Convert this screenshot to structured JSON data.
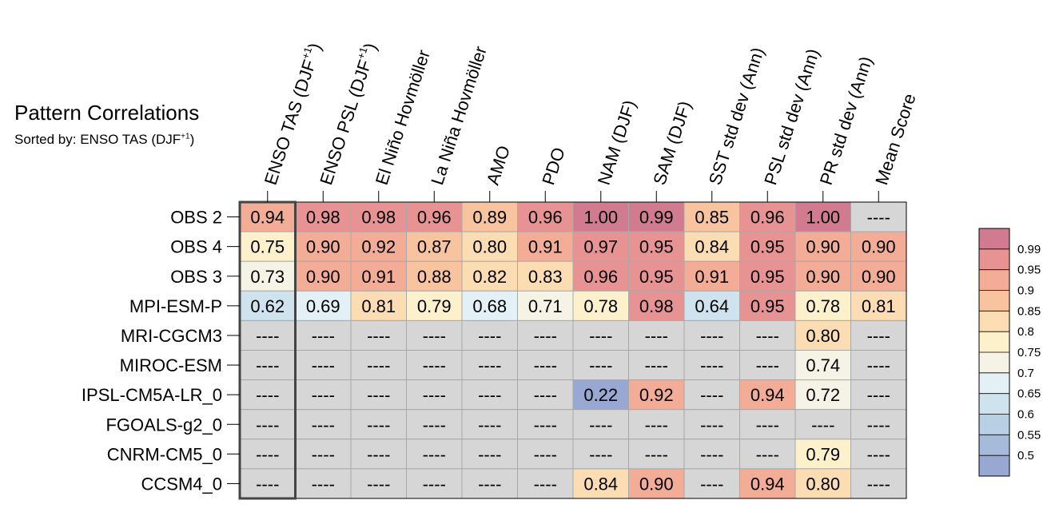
{
  "chart_data": {
    "type": "heatmap",
    "title": "Pattern Correlations",
    "subtitle_prefix": "Sorted by: ENSO TAS (DJF",
    "subtitle_sup": "+1",
    "subtitle_suffix": ")",
    "missing_label": "----",
    "columns": [
      {
        "label": "ENSO TAS (DJF",
        "sup": "+1",
        "suffix": ")"
      },
      {
        "label": "ENSO PSL (DJF",
        "sup": "+1",
        "suffix": ")"
      },
      {
        "label": "El Niño Hovmöller",
        "sup": "",
        "suffix": ""
      },
      {
        "label": "La Niña Hovmöller",
        "sup": "",
        "suffix": ""
      },
      {
        "label": "AMO",
        "sup": "",
        "suffix": ""
      },
      {
        "label": "PDO",
        "sup": "",
        "suffix": ""
      },
      {
        "label": "NAM (DJF)",
        "sup": "",
        "suffix": ""
      },
      {
        "label": "SAM (DJF)",
        "sup": "",
        "suffix": ""
      },
      {
        "label": "SST std dev (Ann)",
        "sup": "",
        "suffix": ""
      },
      {
        "label": "PSL std dev (Ann)",
        "sup": "",
        "suffix": ""
      },
      {
        "label": "PR std dev (Ann)",
        "sup": "",
        "suffix": ""
      },
      {
        "label": "Mean Score",
        "sup": "",
        "suffix": ""
      }
    ],
    "rows": [
      "OBS 2",
      "OBS 4",
      "OBS 3",
      "MPI-ESM-P",
      "MRI-CGCM3",
      "MIROC-ESM",
      "IPSL-CM5A-LR_0",
      "FGOALS-g2_0",
      "CNRM-CM5_0",
      "CCSM4_0"
    ],
    "values": [
      [
        "0.94",
        "0.98",
        "0.98",
        "0.96",
        "0.89",
        "0.96",
        "1.00",
        "0.99",
        "0.85",
        "0.96",
        "1.00",
        null
      ],
      [
        "0.75",
        "0.90",
        "0.92",
        "0.87",
        "0.80",
        "0.91",
        "0.97",
        "0.95",
        "0.84",
        "0.95",
        "0.90",
        "0.90"
      ],
      [
        "0.73",
        "0.90",
        "0.91",
        "0.88",
        "0.82",
        "0.83",
        "0.96",
        "0.95",
        "0.91",
        "0.95",
        "0.90",
        "0.90"
      ],
      [
        "0.62",
        "0.69",
        "0.81",
        "0.79",
        "0.68",
        "0.71",
        "0.78",
        "0.98",
        "0.64",
        "0.95",
        "0.78",
        "0.81"
      ],
      [
        null,
        null,
        null,
        null,
        null,
        null,
        null,
        null,
        null,
        null,
        "0.80",
        null
      ],
      [
        null,
        null,
        null,
        null,
        null,
        null,
        null,
        null,
        null,
        null,
        "0.74",
        null
      ],
      [
        null,
        null,
        null,
        null,
        null,
        null,
        "0.22",
        "0.92",
        null,
        "0.94",
        "0.72",
        null
      ],
      [
        null,
        null,
        null,
        null,
        null,
        null,
        null,
        null,
        null,
        null,
        null,
        null
      ],
      [
        null,
        null,
        null,
        null,
        null,
        null,
        null,
        null,
        null,
        null,
        "0.79",
        null
      ],
      [
        null,
        null,
        null,
        null,
        null,
        null,
        "0.84",
        "0.90",
        null,
        "0.94",
        "0.80",
        null
      ]
    ],
    "sorted_column_index": 0,
    "colorbar": {
      "levels": [
        "0.99",
        "0.95",
        "0.9",
        "0.85",
        "0.8",
        "0.75",
        "0.7",
        "0.65",
        "0.6",
        "0.55",
        "0.5"
      ],
      "bin_colors": [
        "#d17b91",
        "#e89393",
        "#f3ac96",
        "#f8c49f",
        "#fbdcb3",
        "#fdf1cc",
        "#f4f3e6",
        "#e3f0f5",
        "#cfe3ef",
        "#b9cfe3",
        "#a6bbd9",
        "#98a8d2"
      ],
      "missing_color": "#d6d6d6"
    }
  }
}
